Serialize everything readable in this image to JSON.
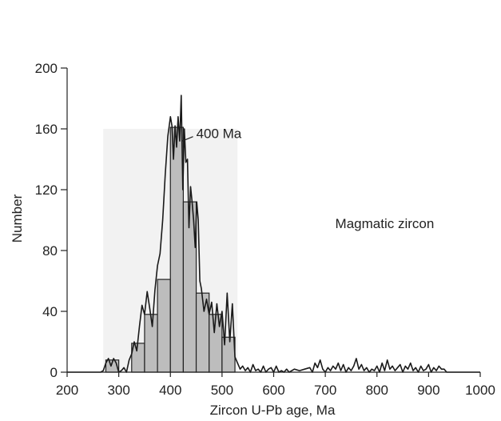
{
  "chart_data": {
    "type": "bar",
    "title": "",
    "xlabel": "Zircon U-Pb age, Ma",
    "ylabel": "Number",
    "xlim": [
      200,
      1000
    ],
    "ylim": [
      0,
      200
    ],
    "x_ticks": [
      "200",
      "300",
      "400",
      "500",
      "600",
      "700",
      "800",
      "900",
      "1000"
    ],
    "y_ticks": [
      "0",
      "40",
      "80",
      "120",
      "160",
      "200"
    ],
    "grid": false,
    "histogram": {
      "bin_width": 25,
      "bins": [
        {
          "start": 275,
          "value": 8
        },
        {
          "start": 300,
          "value": 0
        },
        {
          "start": 325,
          "value": 19
        },
        {
          "start": 350,
          "value": 38
        },
        {
          "start": 375,
          "value": 61
        },
        {
          "start": 400,
          "value": 161
        },
        {
          "start": 425,
          "value": 112
        },
        {
          "start": 450,
          "value": 52
        },
        {
          "start": 475,
          "value": 38
        },
        {
          "start": 500,
          "value": 23
        }
      ]
    },
    "density_curve": {
      "x": [
        200,
        265,
        270,
        275,
        280,
        285,
        290,
        295,
        300,
        305,
        310,
        315,
        320,
        325,
        330,
        335,
        340,
        345,
        350,
        355,
        360,
        365,
        370,
        375,
        380,
        385,
        390,
        395,
        400,
        403,
        406,
        409,
        412,
        415,
        418,
        421,
        424,
        427,
        430,
        433,
        436,
        439,
        442,
        445,
        448,
        451,
        454,
        457,
        460,
        465,
        470,
        475,
        480,
        485,
        490,
        495,
        500,
        505,
        510,
        515,
        520,
        525,
        530,
        535,
        540,
        545,
        550,
        555,
        560,
        565,
        570,
        575,
        580,
        585,
        590,
        595,
        600,
        605,
        610,
        615,
        620,
        625,
        630,
        640,
        650,
        660,
        670,
        675,
        680,
        685,
        690,
        695,
        700,
        705,
        710,
        715,
        720,
        725,
        730,
        735,
        740,
        745,
        750,
        755,
        760,
        765,
        770,
        775,
        780,
        785,
        790,
        795,
        800,
        805,
        810,
        815,
        820,
        825,
        830,
        835,
        840,
        845,
        850,
        855,
        860,
        865,
        870,
        875,
        880,
        885,
        890,
        895,
        900,
        905,
        910,
        915,
        920,
        925,
        930,
        935,
        940,
        1000
      ],
      "y": [
        0,
        0,
        1,
        6,
        9,
        4,
        9,
        6,
        0,
        1,
        3,
        0,
        8,
        12,
        20,
        14,
        30,
        44,
        38,
        53,
        42,
        30,
        54,
        70,
        78,
        100,
        130,
        155,
        168,
        162,
        140,
        162,
        148,
        168,
        152,
        182,
        120,
        160,
        138,
        140,
        95,
        122,
        112,
        100,
        82,
        112,
        100,
        60,
        55,
        40,
        48,
        38,
        46,
        26,
        45,
        30,
        40,
        18,
        52,
        20,
        45,
        10,
        6,
        2,
        4,
        1,
        3,
        0,
        5,
        1,
        2,
        0,
        4,
        0,
        2,
        3,
        0,
        4,
        0,
        1,
        0,
        2,
        0,
        2,
        1,
        2,
        3,
        0,
        6,
        3,
        8,
        2,
        0,
        3,
        1,
        4,
        2,
        6,
        1,
        5,
        0,
        3,
        1,
        4,
        9,
        2,
        5,
        1,
        3,
        0,
        2,
        1,
        4,
        0,
        6,
        1,
        8,
        2,
        4,
        1,
        3,
        5,
        0,
        4,
        2,
        6,
        1,
        3,
        0,
        4,
        1,
        2,
        5,
        0,
        3,
        1,
        4,
        2,
        2,
        0,
        0,
        0
      ]
    },
    "annotations": [
      {
        "text": "400 Ma",
        "x": 450,
        "y": 157,
        "point_x": 423,
        "point_y": 152
      },
      {
        "text": "Magmatic zircon",
        "x": 815,
        "y": 98
      }
    ]
  }
}
